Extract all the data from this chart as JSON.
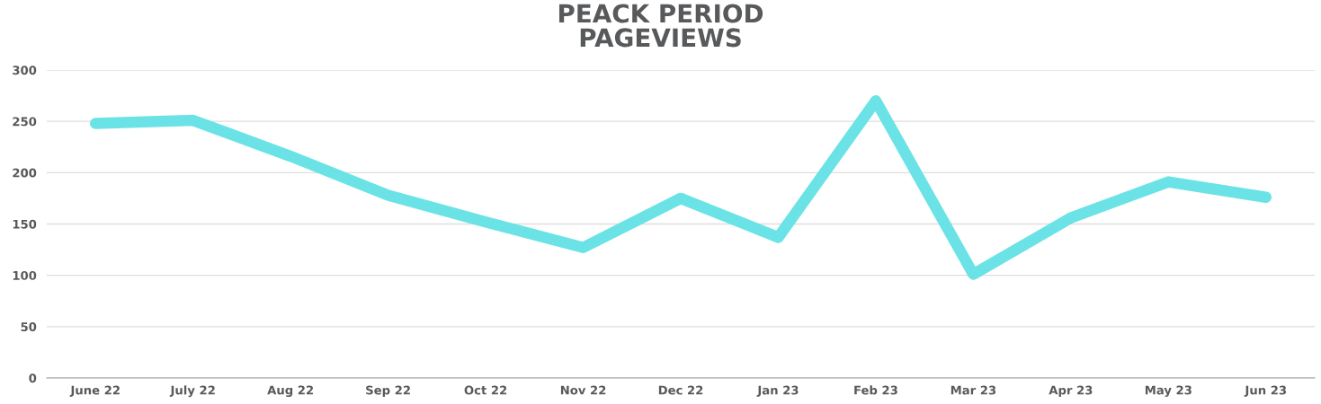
{
  "chart_data": {
    "type": "line",
    "title": "PEACK PERIOD\nPAGEVIEWS",
    "categories": [
      "June 22",
      "July 22",
      "Aug 22",
      "Sep 22",
      "Oct 22",
      "Nov 22",
      "Dec 22",
      "Jan 23",
      "Feb 23",
      "Mar 23",
      "Apr 23",
      "May 23",
      "Jun 23"
    ],
    "series": [
      {
        "color": "#6be3e6",
        "values": [
          248,
          251,
          216,
          178,
          152,
          127,
          175,
          137,
          270,
          101,
          156,
          191,
          176
        ]
      }
    ],
    "ylim": [
      0,
      300
    ],
    "yticks": [
      0,
      50,
      100,
      150,
      200,
      250,
      300
    ],
    "grid": "y",
    "line_style": "solid"
  }
}
